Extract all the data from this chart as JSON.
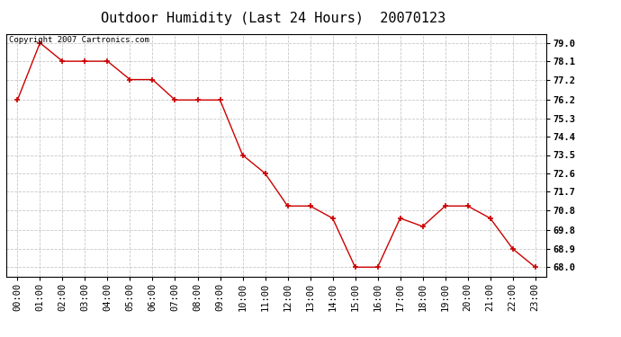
{
  "title": "Outdoor Humidity (Last 24 Hours)  20070123",
  "copyright_text": "Copyright 2007 Cartronics.com",
  "x_labels": [
    "00:00",
    "01:00",
    "02:00",
    "03:00",
    "04:00",
    "05:00",
    "06:00",
    "07:00",
    "08:00",
    "09:00",
    "10:00",
    "11:00",
    "12:00",
    "13:00",
    "14:00",
    "15:00",
    "16:00",
    "17:00",
    "18:00",
    "19:00",
    "20:00",
    "21:00",
    "22:00",
    "23:00"
  ],
  "y_values": [
    76.2,
    79.0,
    78.1,
    78.1,
    78.1,
    77.2,
    77.2,
    76.2,
    76.2,
    76.2,
    73.5,
    72.6,
    71.0,
    71.0,
    70.4,
    68.0,
    68.0,
    70.4,
    70.0,
    71.0,
    71.0,
    70.4,
    68.9,
    68.0
  ],
  "y_ticks": [
    68.0,
    68.9,
    69.8,
    70.8,
    71.7,
    72.6,
    73.5,
    74.4,
    75.3,
    76.2,
    77.2,
    78.1,
    79.0
  ],
  "ylim": [
    67.55,
    79.45
  ],
  "line_color": "#cc0000",
  "marker": "+",
  "marker_color": "#cc0000",
  "bg_color": "#ffffff",
  "grid_color": "#c8c8c8",
  "title_fontsize": 11,
  "tick_fontsize": 7.5,
  "copyright_fontsize": 6.5
}
